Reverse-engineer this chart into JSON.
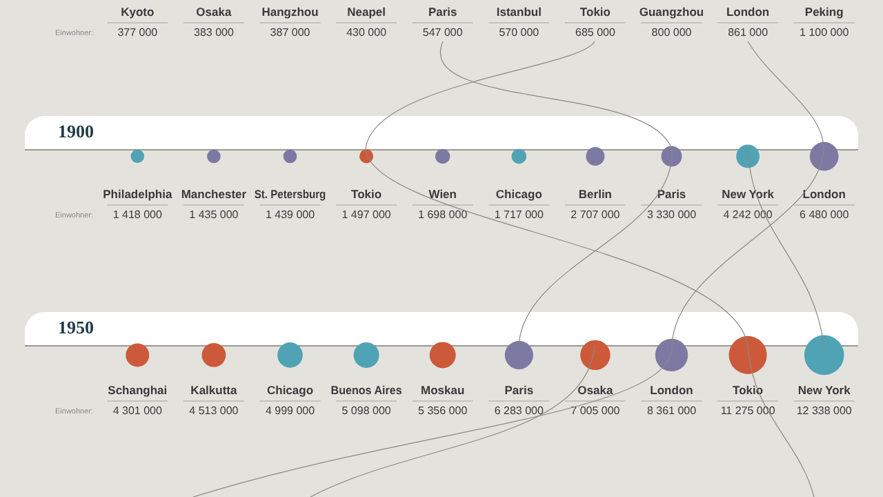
{
  "chart_data": [
    {
      "type": "other",
      "ylabel": "Einwohner:",
      "data_labels": true,
      "categories": [
        "Kyoto",
        "Osaka",
        "Hangzhou",
        "Neapel",
        "Paris",
        "Istanbul",
        "Tokio",
        "Guangzhou",
        "London",
        "Peking"
      ],
      "values": [
        377000,
        383000,
        387000,
        430000,
        547000,
        570000,
        685000,
        800000,
        861000,
        1100000
      ]
    },
    {
      "type": "other",
      "title": "1900",
      "ylabel": "Einwohner:",
      "data_labels": true,
      "categories": [
        "Philadelphia",
        "Manchester",
        "St. Petersburg",
        "Tokio",
        "Wien",
        "Chicago",
        "Berlin",
        "Paris",
        "New York",
        "London"
      ],
      "values": [
        1418000,
        1435000,
        1439000,
        1497000,
        1698000,
        1717000,
        2707000,
        3330000,
        4242000,
        6480000
      ],
      "colors": [
        "#4fa3b5",
        "#7c7aa3",
        "#7c7aa3",
        "#cc5a3a",
        "#7c7aa3",
        "#4fa3b5",
        "#7c7aa3",
        "#7c7aa3",
        "#4fa3b5",
        "#7c7aa3"
      ]
    },
    {
      "type": "other",
      "title": "1950",
      "ylabel": "Einwohner:",
      "data_labels": true,
      "categories": [
        "Schanghai",
        "Kalkutta",
        "Chicago",
        "Buenos Aires",
        "Moskau",
        "Paris",
        "Osaka",
        "London",
        "Tokio",
        "New York"
      ],
      "values": [
        4301000,
        4513000,
        4999000,
        5098000,
        5356000,
        6283000,
        7005000,
        8361000,
        11275000,
        12338000
      ],
      "colors": [
        "#cc5a3a",
        "#cc5a3a",
        "#4fa3b5",
        "#4fa3b5",
        "#cc5a3a",
        "#7c7aa3",
        "#cc5a3a",
        "#7c7aa3",
        "#cc5a3a",
        "#4fa3b5"
      ]
    }
  ]
}
